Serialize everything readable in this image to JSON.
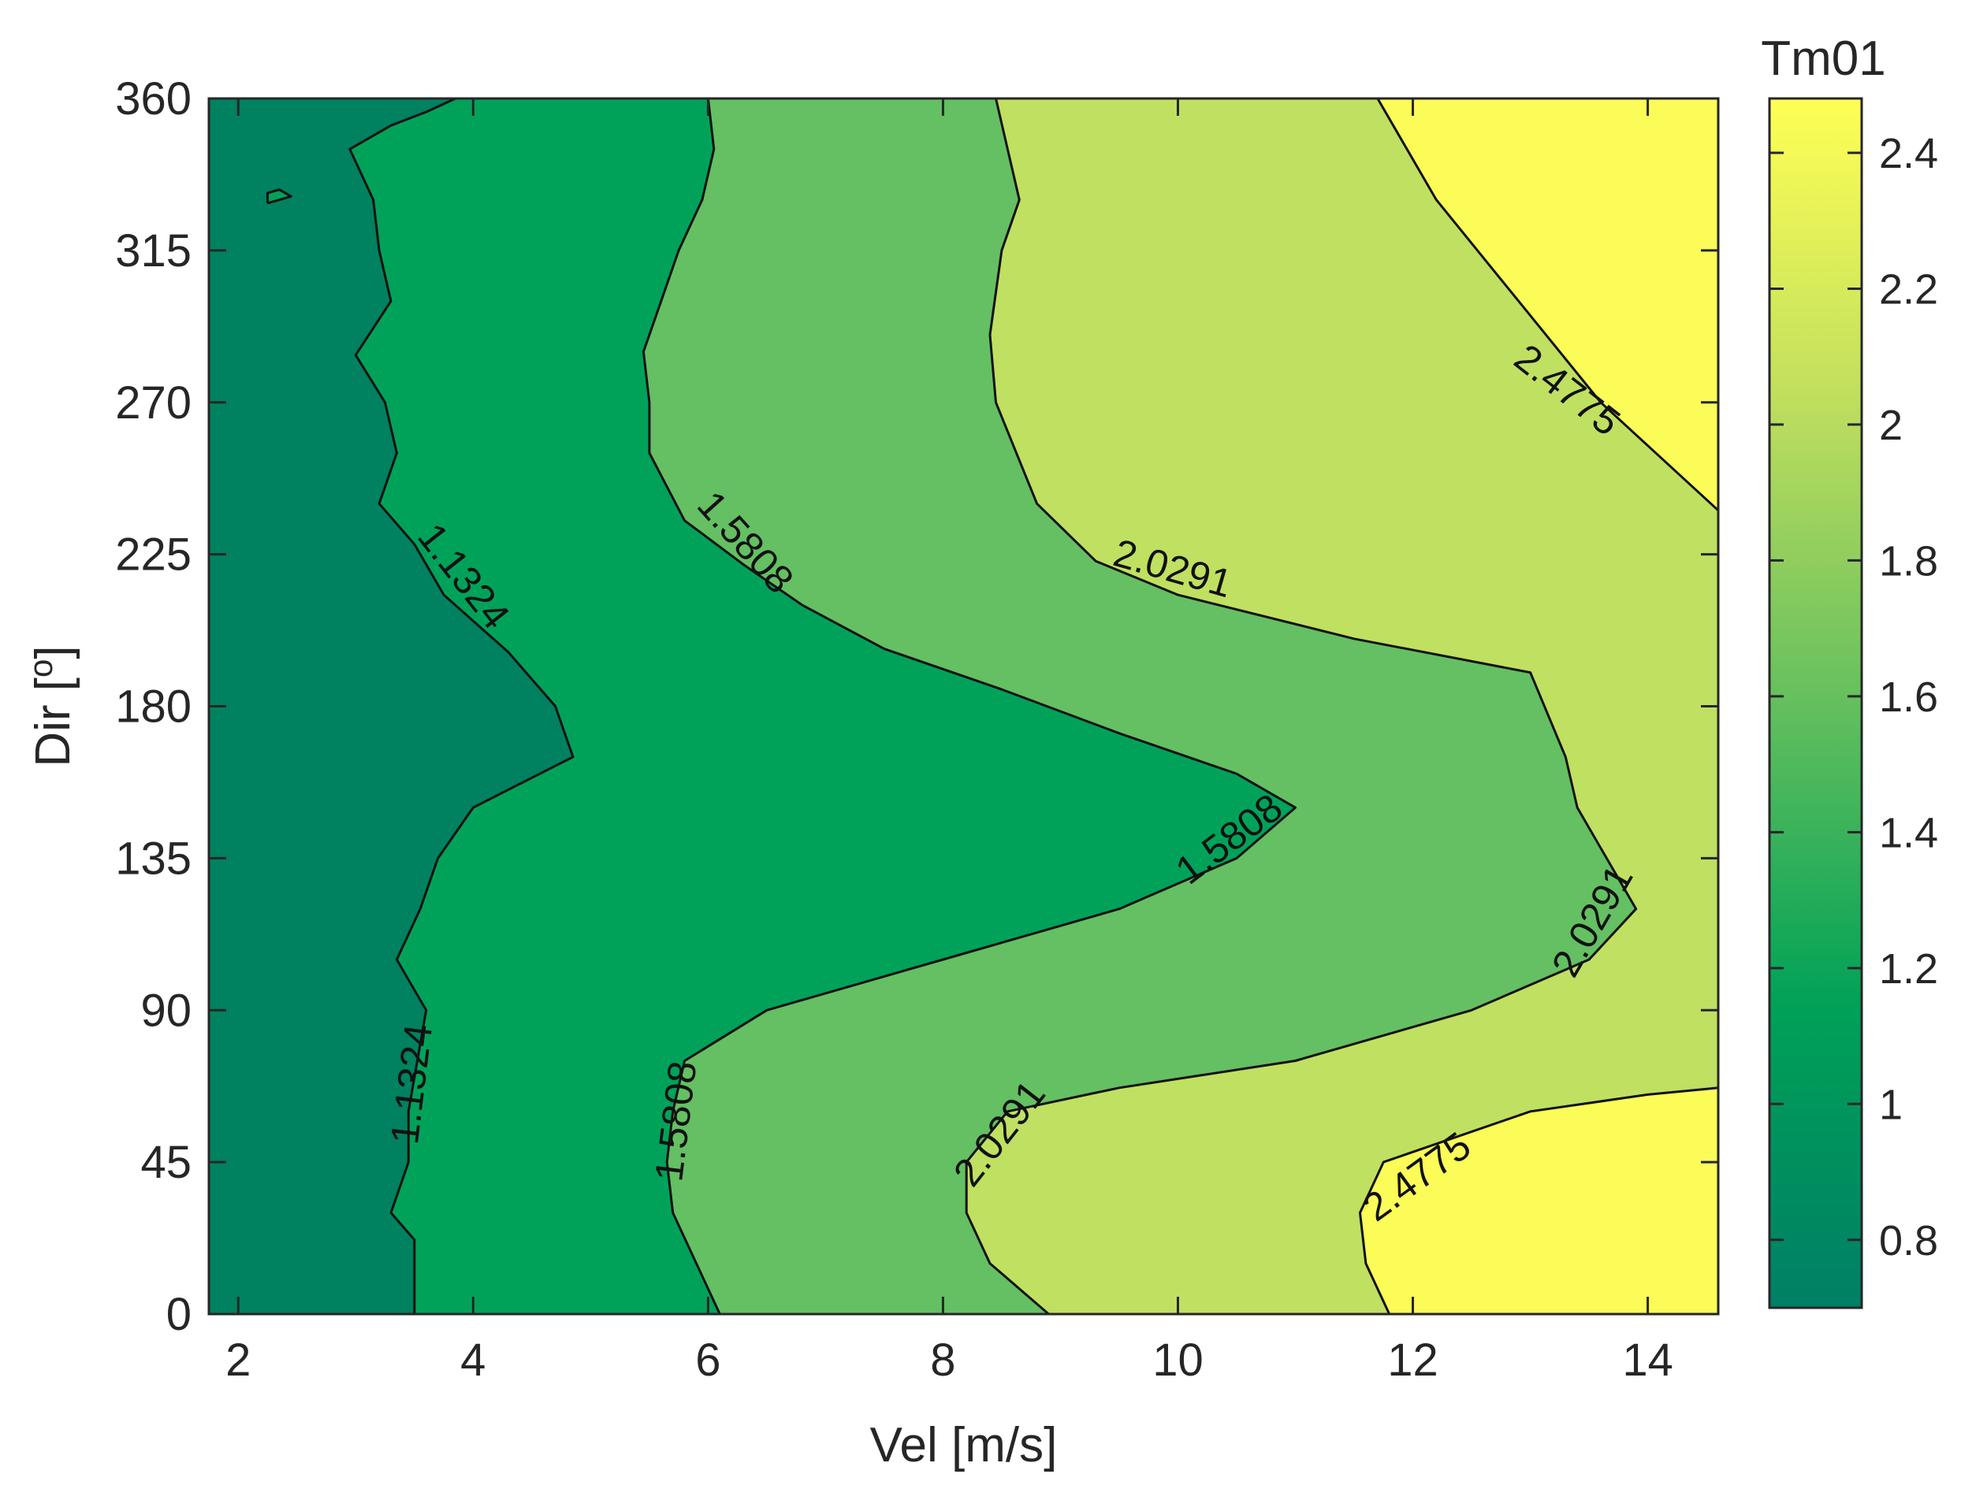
{
  "chart_data": {
    "type": "contour",
    "xlabel": "Vel [m/s]",
    "ylabel_main": "Dir [",
    "ylabel_sup": "o",
    "ylabel_end": "]",
    "colorbar_title": "Tm01",
    "xlim": [
      1.75,
      14.6
    ],
    "ylim": [
      0,
      360
    ],
    "xticks": [
      "2",
      "4",
      "6",
      "8",
      "10",
      "12",
      "14"
    ],
    "yticks": [
      "0",
      "45",
      "90",
      "135",
      "180",
      "225",
      "270",
      "315",
      "360"
    ],
    "colorbar_range": [
      0.7,
      2.48
    ],
    "colorbar_ticks": [
      "0.8",
      "1",
      "1.2",
      "1.4",
      "1.6",
      "1.8",
      "2",
      "2.2",
      "2.4"
    ],
    "colormap": [
      "#007f65",
      "#00a157",
      "#64bf5e",
      "#bfde5e",
      "#ffff55"
    ],
    "fill_colors": {
      "level_below_1_1324": "#00815f",
      "level_1_1324_to_1_5808": "#00a25a",
      "level_1_5808_to_2_0291": "#64c062",
      "level_2_0291_to_2_4775": "#c0e062",
      "level_above_2_4775": "#fcfc58"
    },
    "contour_levels": [
      {
        "value": 1.1324,
        "labels": [
          "1.1324",
          "1.1324"
        ],
        "path": [
          [
            3.5,
            0
          ],
          [
            3.5,
            22
          ],
          [
            3.3,
            30
          ],
          [
            3.45,
            45
          ],
          [
            3.45,
            60
          ],
          [
            3.55,
            80
          ],
          [
            3.6,
            90
          ],
          [
            3.35,
            105
          ],
          [
            3.55,
            120
          ],
          [
            3.7,
            135
          ],
          [
            4.0,
            150
          ],
          [
            4.85,
            165
          ],
          [
            4.7,
            180
          ],
          [
            4.3,
            196
          ],
          [
            3.75,
            213
          ],
          [
            3.5,
            228
          ],
          [
            3.2,
            240
          ],
          [
            3.35,
            255
          ],
          [
            3.25,
            270
          ],
          [
            3.0,
            284
          ],
          [
            3.3,
            300
          ],
          [
            3.2,
            315
          ],
          [
            3.15,
            330
          ],
          [
            2.95,
            345
          ],
          [
            3.3,
            352
          ],
          [
            3.6,
            356
          ],
          [
            3.85,
            360
          ]
        ]
      },
      {
        "value": 1.1324,
        "labels": [],
        "closed": true,
        "path": [
          [
            2.25,
            329
          ],
          [
            2.45,
            331
          ],
          [
            2.35,
            333
          ],
          [
            2.25,
            332
          ],
          [
            2.25,
            329
          ]
        ]
      },
      {
        "value": 1.5808,
        "labels": [
          "1.5808",
          "1.5808",
          "1.5808"
        ],
        "path": [
          [
            6.1,
            0
          ],
          [
            5.9,
            15
          ],
          [
            5.7,
            30
          ],
          [
            5.65,
            45
          ],
          [
            5.7,
            60
          ],
          [
            5.8,
            75
          ],
          [
            6.5,
            90
          ],
          [
            8.0,
            105
          ],
          [
            9.5,
            120
          ],
          [
            10.5,
            135
          ],
          [
            11.0,
            150
          ],
          [
            10.5,
            160
          ],
          [
            9.5,
            172
          ],
          [
            8.5,
            185
          ],
          [
            7.5,
            197
          ],
          [
            6.8,
            210
          ],
          [
            6.3,
            222
          ],
          [
            5.8,
            235
          ],
          [
            5.5,
            255
          ],
          [
            5.5,
            270
          ],
          [
            5.45,
            285
          ],
          [
            5.6,
            300
          ],
          [
            5.75,
            315
          ],
          [
            5.95,
            330
          ],
          [
            6.05,
            345
          ],
          [
            6.0,
            360
          ]
        ]
      },
      {
        "value": 2.0291,
        "labels": [
          "2.0291",
          "2.0291",
          "2.0291"
        ],
        "path": [
          [
            8.9,
            0
          ],
          [
            8.4,
            15
          ],
          [
            8.2,
            30
          ],
          [
            8.2,
            45
          ],
          [
            8.55,
            60
          ],
          [
            9.5,
            67
          ],
          [
            11.0,
            75
          ],
          [
            12.5,
            90
          ],
          [
            13.5,
            105
          ],
          [
            13.9,
            120
          ],
          [
            13.65,
            135
          ],
          [
            13.4,
            150
          ],
          [
            13.3,
            165
          ],
          [
            13.0,
            190
          ],
          [
            11.5,
            200
          ],
          [
            10.0,
            213
          ],
          [
            9.3,
            223
          ],
          [
            8.8,
            240
          ],
          [
            8.45,
            270
          ],
          [
            8.4,
            290
          ],
          [
            8.5,
            315
          ],
          [
            8.65,
            330
          ],
          [
            8.55,
            345
          ],
          [
            8.45,
            360
          ]
        ]
      },
      {
        "value": 2.4775,
        "labels": [
          "2.4775"
        ],
        "path": [
          [
            11.8,
            0
          ],
          [
            11.6,
            15
          ],
          [
            11.55,
            30
          ],
          [
            11.75,
            45
          ],
          [
            13.0,
            60
          ],
          [
            14.0,
            65
          ],
          [
            14.6,
            67
          ]
        ]
      },
      {
        "value": 2.4775,
        "labels": [
          "2.4775"
        ],
        "path": [
          [
            11.7,
            360
          ],
          [
            12.2,
            330
          ],
          [
            12.9,
            300
          ],
          [
            13.6,
            270
          ],
          [
            14.6,
            238
          ]
        ]
      }
    ],
    "label_positions_note": "Labels placed along contour lines near (x,y) in data units",
    "label_anchors": [
      {
        "text": "1.1324",
        "x": 3.9,
        "y": 218,
        "angle": 52
      },
      {
        "text": "1.1324",
        "x": 3.5,
        "y": 68,
        "angle": -83
      },
      {
        "text": "1.5808",
        "x": 6.3,
        "y": 228,
        "angle": 48
      },
      {
        "text": "1.5808",
        "x": 10.45,
        "y": 140,
        "angle": -37
      },
      {
        "text": "1.5808",
        "x": 5.75,
        "y": 57,
        "angle": -83
      },
      {
        "text": "2.0291",
        "x": 9.95,
        "y": 220,
        "angle": 16
      },
      {
        "text": "2.0291",
        "x": 13.55,
        "y": 116,
        "angle": -60
      },
      {
        "text": "2.0291",
        "x": 8.5,
        "y": 53,
        "angle": -52
      },
      {
        "text": "2.4775",
        "x": 13.3,
        "y": 273,
        "angle": 38
      },
      {
        "text": "2.4775",
        "x": 12.05,
        "y": 40,
        "angle": -36
      }
    ]
  }
}
